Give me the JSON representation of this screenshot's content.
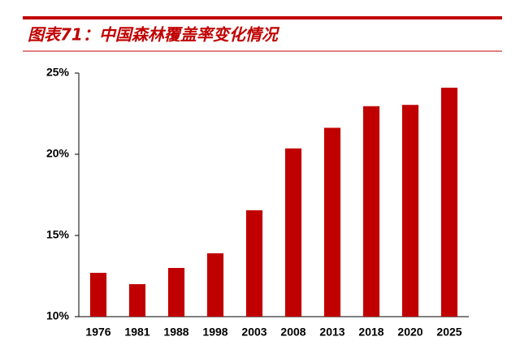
{
  "chart_data": {
    "type": "bar",
    "title": "图表71：中国森林覆盖率变化情况",
    "categories": [
      "1976",
      "1981",
      "1988",
      "1998",
      "2003",
      "2008",
      "2013",
      "2018",
      "2020",
      "2025"
    ],
    "values": [
      12.7,
      12.0,
      13.0,
      13.9,
      16.55,
      20.36,
      21.63,
      22.96,
      23.04,
      24.1
    ],
    "color": "#c00000",
    "ylim": [
      10,
      25
    ],
    "yticks": [
      {
        "value": 10,
        "label": "10%"
      },
      {
        "value": 15,
        "label": "15%"
      },
      {
        "value": 20,
        "label": "20%"
      },
      {
        "value": 25,
        "label": "25%"
      }
    ],
    "grid": false
  }
}
